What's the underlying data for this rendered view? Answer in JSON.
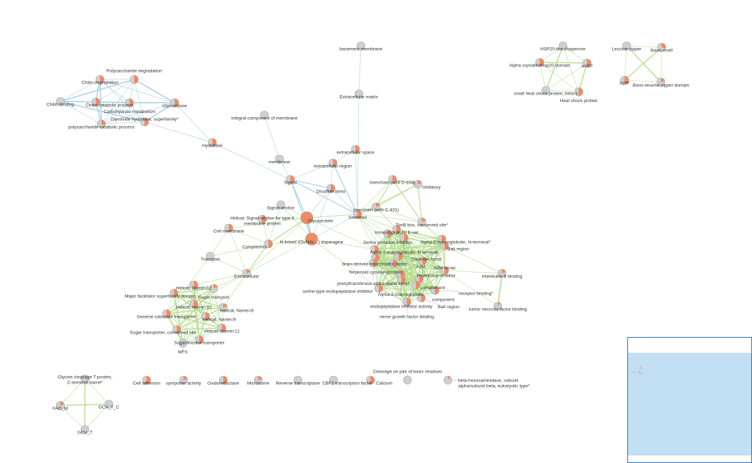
{
  "colors": {
    "edge_blue": "#a8d0e6",
    "edge_green": "#b5de8e",
    "node_gray": "#cfcfcf",
    "node_orange": "#f08a64",
    "minimap_bg": "#c3dff4",
    "minimap_border": "#1f6fbf"
  },
  "nodes": [
    {
      "label": "Chitin degradation",
      "orange": 0.5
    },
    {
      "label": "Polysaccharide degradation",
      "orange": 0.5
    },
    {
      "label": "Chitin binding",
      "orange": 0
    },
    {
      "label": "Chitin catabolic process",
      "orange": 0.5
    },
    {
      "label": "Carbohydrate metabolism",
      "orange": 0.5
    },
    {
      "label": "Glycosidase",
      "orange": 0.5
    },
    {
      "label": "polysaccharide catabolic process",
      "orange": 0.3
    },
    {
      "label": "Glycoside hydrolase, superfamily*",
      "orange": 0.5
    },
    {
      "label": "Hydrolase",
      "orange": 0.5
    },
    {
      "label": "integral component of membrane",
      "orange": 0
    },
    {
      "label": "basement membrane",
      "orange": 0
    },
    {
      "label": "Extracellular matrix",
      "orange": 0
    },
    {
      "label": "extracellular space",
      "orange": 0.5
    },
    {
      "label": "extracellular region",
      "orange": 0.5
    },
    {
      "label": "membrane",
      "orange": 0
    },
    {
      "label": "Signal",
      "orange": 0.5
    },
    {
      "label": "Disulfide bond",
      "orange": 0.5
    },
    {
      "label": "Interchain (with C-431)",
      "orange": 0.2
    },
    {
      "label": "Secreted",
      "orange": 0.6
    },
    {
      "label": "Signal-anchor",
      "orange": 0
    },
    {
      "label": "Helical; Signal-anchor for type II\nmembrane protein",
      "orange": 0.5
    },
    {
      "label": "Glycoprotein",
      "orange": 1
    },
    {
      "label": "Cell membrane",
      "orange": 0.5
    },
    {
      "label": "N-linked (GlcNAc...) asparagine",
      "orange": 1
    },
    {
      "label": "Cytoplasmic",
      "orange": 0.5
    },
    {
      "label": "Transport",
      "orange": 0
    },
    {
      "label": "Extracellular",
      "orange": 0.2
    },
    {
      "label": "Helical; Name=12",
      "orange": 0.5
    },
    {
      "label": "Sugar transport",
      "orange": 0.2
    },
    {
      "label": "Major facilitator superfamily domain",
      "orange": 0.5
    },
    {
      "label": "Helical; Name=10",
      "orange": 0.5
    },
    {
      "label": "Helical; Name=8",
      "orange": 0.2
    },
    {
      "label": "General substrate transporter",
      "orange": 0.5
    },
    {
      "label": "Helical; Name=9",
      "orange": 0.5
    },
    {
      "label": "Helical; Name=11",
      "orange": 0.5
    },
    {
      "label": "Sugar transporter, conserved site",
      "orange": 0.5
    },
    {
      "label": "Sugar/inositol transporter",
      "orange": 0.5
    },
    {
      "label": "MFS",
      "orange": 0
    },
    {
      "label": "Interchain (with C-278)",
      "orange": 0.5
    },
    {
      "label": "Inhibitory",
      "orange": 0.2
    },
    {
      "label": "TonB box, conserved site*",
      "orange": 0.2
    },
    {
      "label": "Immunoglobulin E-set",
      "orange": 0.5
    },
    {
      "label": "Serine protease inhibitor",
      "orange": 0.5
    },
    {
      "label": "Alpha-2-macroglobulin, N-terminal",
      "orange": 0.5
    },
    {
      "label": "Alpha-2-macroglobulin, N-terminal*",
      "orange": 0.5
    },
    {
      "label": "Bait region",
      "orange": 0.5
    },
    {
      "label": "brain-derived neurotrophic factor",
      "orange": 0.5
    },
    {
      "label": "Terpenoid cyclases/protein",
      "orange": 0.5
    },
    {
      "label": "Thioester bond",
      "orange": 0.5
    },
    {
      "label": "prenyltransferase alpha-alpha toroid",
      "orange": 0.5
    },
    {
      "label": "A2M",
      "orange": 0.5
    },
    {
      "label": "Proteinase inhibitor",
      "orange": 0.5
    },
    {
      "label": "Alpha-2-macroglobulin",
      "orange": 0.5
    },
    {
      "label": "complement",
      "orange": 0.5
    },
    {
      "label": "endopeptidase inhibitor activity",
      "orange": 0.5
    },
    {
      "label": "A2M recep",
      "orange": 0.5
    },
    {
      "label": "component",
      "orange": 0.5
    },
    {
      "label": "receptor-binding*",
      "orange": 0.5
    },
    {
      "label": "serine-type endopeptidase inhibitor",
      "orange": 0.5
    },
    {
      "label": "Bait region",
      "orange": 0.5
    },
    {
      "label": "nerve growth factor binding",
      "orange": 0.5
    },
    {
      "label": "interleukin-8 binding",
      "orange": 0.2
    },
    {
      "label": "tumor necrosis factor binding",
      "orange": 0.1
    },
    {
      "label": "HSP20-like chaperone",
      "orange": 0
    },
    {
      "label": "Alpha crystallin/Hsp20 domain",
      "orange": 0.5
    },
    {
      "label": "sHSP",
      "orange": 0.5
    },
    {
      "label": "small heat shock protein, beta-1",
      "orange": 0
    },
    {
      "label": "Heat shock protein",
      "orange": 0.5
    },
    {
      "label": "Leucine-zipper",
      "orange": 0
    },
    {
      "label": "Basic motif",
      "orange": 0.3
    },
    {
      "label": "bZIP",
      "orange": 0.5
    },
    {
      "label": "Basic-leucine zipper domain",
      "orange": 0.2
    },
    {
      "label": "Glycine cleavage T-protein,\nC-terminal barrel*",
      "orange": 0
    },
    {
      "label": "FAO_M",
      "orange": 0.2
    },
    {
      "label": "GCV_T_C",
      "orange": 0
    },
    {
      "label": "GCV_T",
      "orange": 0
    },
    {
      "label": "Cell adhesion",
      "orange": 0.6
    },
    {
      "label": "symporter activity",
      "orange": 0.2
    },
    {
      "label": "Oxidoreductase",
      "orange": 0.5
    },
    {
      "label": "Microsome",
      "orange": 0.2
    },
    {
      "label": "Reverse transcriptase",
      "orange": 0
    },
    {
      "label": "CBF2 transcription factor",
      "orange": 0
    },
    {
      "label": "Calcium",
      "orange": 0.6
    },
    {
      "label": "Cleavage on pair of basic residues",
      "orange": 0
    },
    {
      "label": "beta-hexosaminidase, subunit\nalpha/subunit beta, eukaryotic type*",
      "orange": 0.1
    }
  ],
  "edges": [
    [
      5,
      8,
      "b",
      1
    ],
    [
      7,
      8,
      "b",
      1
    ],
    [
      8,
      15,
      "b",
      1
    ],
    [
      10,
      11,
      "b",
      1
    ],
    [
      11,
      18,
      "b",
      1
    ],
    [
      9,
      14,
      "b",
      1
    ],
    [
      14,
      15,
      "b",
      1
    ],
    [
      15,
      16,
      "b",
      2
    ],
    [
      15,
      13,
      "b",
      1
    ],
    [
      15,
      21,
      "b",
      2
    ],
    [
      15,
      23,
      "b",
      2
    ],
    [
      15,
      18,
      "b",
      2
    ],
    [
      16,
      21,
      "b",
      1
    ],
    [
      16,
      23,
      "b",
      1
    ],
    [
      16,
      18,
      "b",
      1
    ],
    [
      16,
      13,
      "b",
      1
    ],
    [
      13,
      12,
      "b",
      1
    ],
    [
      13,
      18,
      "b",
      2
    ],
    [
      12,
      18,
      "b",
      1
    ],
    [
      21,
      23,
      "b",
      3
    ],
    [
      21,
      18,
      "b",
      1
    ],
    [
      23,
      18,
      "b",
      1
    ],
    [
      18,
      17,
      "g",
      1
    ],
    [
      18,
      38,
      "g",
      1
    ],
    [
      18,
      39,
      "g",
      1
    ],
    [
      18,
      40,
      "g",
      1
    ],
    [
      17,
      38,
      "g",
      2
    ],
    [
      17,
      39,
      "g",
      2
    ],
    [
      38,
      39,
      "g",
      3
    ],
    [
      38,
      40,
      "g",
      2
    ],
    [
      39,
      40,
      "g",
      2
    ],
    [
      17,
      40,
      "g",
      1
    ],
    [
      18,
      41,
      "g",
      1
    ],
    [
      18,
      42,
      "g",
      1
    ],
    [
      18,
      46,
      "g",
      1
    ],
    [
      18,
      48,
      "g",
      1
    ],
    [
      18,
      52,
      "g",
      1
    ],
    [
      17,
      41,
      "g",
      1
    ],
    [
      17,
      43,
      "g",
      1
    ],
    [
      40,
      44,
      "g",
      1
    ],
    [
      40,
      45,
      "g",
      1
    ],
    [
      21,
      19,
      "g",
      1
    ],
    [
      21,
      20,
      "g",
      1
    ],
    [
      21,
      24,
      "g",
      2
    ],
    [
      21,
      26,
      "g",
      1
    ],
    [
      21,
      22,
      "g",
      1
    ],
    [
      21,
      46,
      "g",
      1
    ],
    [
      21,
      18,
      "g",
      1
    ],
    [
      23,
      24,
      "g",
      1
    ],
    [
      23,
      26,
      "g",
      1
    ],
    [
      23,
      19,
      "g",
      1
    ],
    [
      23,
      46,
      "g",
      1
    ],
    [
      23,
      58,
      "g",
      1
    ],
    [
      24,
      22,
      "g",
      1
    ],
    [
      24,
      25,
      "g",
      1
    ],
    [
      24,
      26,
      "g",
      2
    ],
    [
      24,
      19,
      "g",
      1
    ],
    [
      20,
      24,
      "g",
      1
    ],
    [
      22,
      25,
      "g",
      1
    ],
    [
      22,
      26,
      "g",
      1
    ],
    [
      25,
      26,
      "g",
      1
    ],
    [
      26,
      27,
      "g",
      1
    ],
    [
      26,
      28,
      "g",
      1
    ],
    [
      26,
      31,
      "g",
      1
    ],
    [
      26,
      30,
      "g",
      1
    ],
    [
      25,
      32,
      "g",
      1
    ],
    [
      55,
      61,
      "g",
      1
    ],
    [
      45,
      61,
      "g",
      1
    ],
    [
      61,
      62,
      "g",
      3
    ],
    [
      55,
      62,
      "g",
      1
    ]
  ],
  "cliques": [
    {
      "nodes": [
        0,
        1,
        2,
        3,
        4,
        5,
        6,
        7
      ],
      "color": "b"
    },
    {
      "nodes": [
        27,
        28,
        29,
        30,
        31,
        32,
        33,
        34,
        35,
        36,
        37
      ],
      "color": "g"
    },
    {
      "nodes": [
        41,
        42,
        43,
        44,
        45,
        46,
        47,
        48,
        49,
        50,
        51,
        52,
        53,
        54,
        55,
        56,
        57,
        58,
        59,
        60
      ],
      "color": "g"
    },
    {
      "nodes": [
        63,
        64,
        65,
        66,
        67
      ],
      "color": "g"
    },
    {
      "nodes": [
        68,
        69,
        70,
        71
      ],
      "color": "g"
    },
    {
      "nodes": [
        72,
        73,
        74,
        75
      ],
      "color": "g"
    }
  ]
}
